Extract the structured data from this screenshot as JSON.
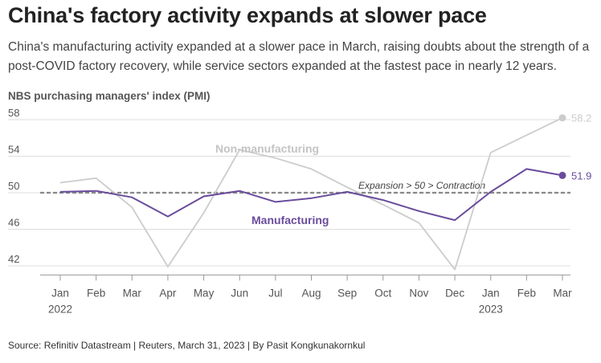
{
  "header": {
    "title": "China's factory activity expands at slower pace",
    "subtitle": "China's manufacturing activity expanded at a slower pace in March, raising doubts about the strength of a post-COVID factory recovery, while service sectors expanded at the fastest pace in nearly 12 years.",
    "chart_heading": "NBS purchasing managers' index (PMI)"
  },
  "footer": {
    "source": "Source: Refinitiv Datastream | Reuters, March 31, 2023 | By Pasit Kongkunakornkul"
  },
  "chart_data": {
    "type": "line",
    "categories": [
      "Jan",
      "Feb",
      "Mar",
      "Apr",
      "May",
      "Jun",
      "Jul",
      "Aug",
      "Sep",
      "Oct",
      "Nov",
      "Dec",
      "Jan",
      "Feb",
      "Mar"
    ],
    "year_labels": [
      "2022",
      "",
      "",
      "",
      "",
      "",
      "",
      "",
      "",
      "",
      "",
      "",
      "2023",
      "",
      ""
    ],
    "yticks": [
      42,
      46,
      50,
      54,
      58
    ],
    "ylim": [
      41,
      59
    ],
    "series": [
      {
        "name": "Non-manufacturing",
        "color": "#cccccc",
        "values": [
          51.1,
          51.6,
          48.4,
          41.9,
          47.8,
          54.7,
          53.8,
          52.6,
          50.6,
          48.7,
          46.7,
          41.6,
          54.4,
          56.3,
          58.2
        ],
        "end_label": "58.2"
      },
      {
        "name": "Manufacturing",
        "color": "#6a4c9c",
        "values": [
          50.1,
          50.2,
          49.5,
          47.4,
          49.6,
          50.2,
          49.0,
          49.4,
          50.1,
          49.2,
          48.0,
          47.0,
          50.1,
          52.6,
          51.9
        ],
        "end_label": "51.9"
      }
    ],
    "reference_line": {
      "value": 50,
      "label": "Expansion > 50 > Contraction"
    }
  }
}
